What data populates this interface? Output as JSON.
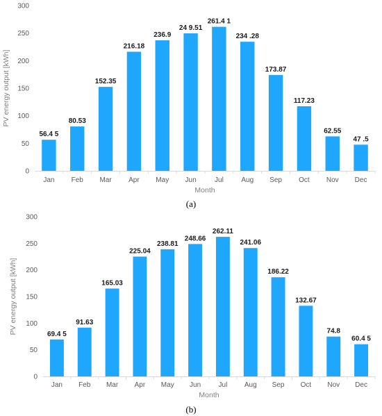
{
  "panel_labels": [
    "(a)",
    "(b)"
  ],
  "chart_data": [
    {
      "type": "bar",
      "xlabel": "Month",
      "ylabel": "PV energy output [kWh]",
      "ylim": [
        0,
        300
      ],
      "yticks": [
        0,
        50,
        100,
        150,
        200,
        250,
        300
      ],
      "bar_color": "#1ea7fd",
      "grid": false,
      "categories": [
        "Jan",
        "Feb",
        "Mar",
        "Apr",
        "May",
        "Jun",
        "Jul",
        "Aug",
        "Sep",
        "Oct",
        "Nov",
        "Dec"
      ],
      "values": [
        56.45,
        80.53,
        152.35,
        216.18,
        236.9,
        249.51,
        261.41,
        234.28,
        173.87,
        117.23,
        62.55,
        47.5
      ],
      "data_labels": [
        "56.4 5",
        "80.53",
        "152.35",
        "216.18",
        "236.9",
        "24 9.51",
        "261.4 1",
        "234 .28",
        "173.87",
        "117.23",
        "62.55",
        "47 .5"
      ]
    },
    {
      "type": "bar",
      "xlabel": "Month",
      "ylabel": "PV energy output [kWh]",
      "ylim": [
        0,
        300
      ],
      "yticks": [
        0,
        50,
        100,
        150,
        200,
        250,
        300
      ],
      "bar_color": "#1ea7fd",
      "grid": false,
      "categories": [
        "Jan",
        "Feb",
        "Mar",
        "Apr",
        "May",
        "Jun",
        "Jul",
        "Aug",
        "Sep",
        "Oct",
        "Nov",
        "Dec"
      ],
      "values": [
        69.45,
        91.63,
        165.03,
        225.04,
        238.81,
        248.66,
        262.11,
        241.06,
        186.22,
        132.67,
        74.8,
        60.45
      ],
      "data_labels": [
        "69.4 5",
        "91.63",
        "165.03",
        "225.04",
        "238.81",
        "248.66",
        "262.11",
        "241.06",
        "186.22",
        "132.67",
        "74.8",
        "60.4 5"
      ]
    }
  ]
}
